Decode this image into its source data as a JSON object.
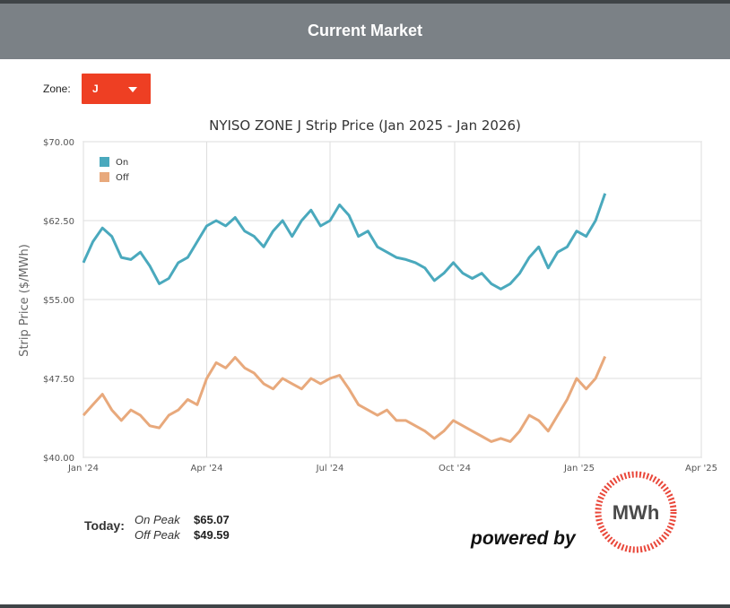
{
  "header": {
    "title": "Current Market"
  },
  "zone": {
    "label": "Zone:",
    "selected": "J"
  },
  "chart_data": {
    "type": "line",
    "title": "NYISO ZONE J Strip Price (Jan 2025 - Jan 2026)",
    "ylabel": "Strip Price ($/MWh)",
    "xlabel": "",
    "ylim": [
      40,
      70
    ],
    "xlim": [
      "2024-01-01",
      "2025-04-01"
    ],
    "x_ticks": [
      {
        "date": "2024-01-01",
        "label": "Jan '24"
      },
      {
        "date": "2024-04-01",
        "label": "Apr '24"
      },
      {
        "date": "2024-07-01",
        "label": "Jul '24"
      },
      {
        "date": "2024-10-01",
        "label": "Oct '24"
      },
      {
        "date": "2025-01-01",
        "label": "Jan '25"
      },
      {
        "date": "2025-04-01",
        "label": "Apr '25"
      }
    ],
    "y_ticks": [
      {
        "value": 40,
        "label": "$40.00"
      },
      {
        "value": 47.5,
        "label": "$47.50"
      },
      {
        "value": 55,
        "label": "$55.00"
      },
      {
        "value": 62.5,
        "label": "$62.50"
      },
      {
        "value": 70,
        "label": "$70.00"
      }
    ],
    "grid": true,
    "legend": "top-left",
    "series": [
      {
        "name": "On",
        "color": "#4aa9bd",
        "x": [
          "2024-01-01",
          "2024-01-08",
          "2024-01-15",
          "2024-01-22",
          "2024-01-29",
          "2024-02-05",
          "2024-02-12",
          "2024-02-19",
          "2024-02-26",
          "2024-03-04",
          "2024-03-11",
          "2024-03-18",
          "2024-03-25",
          "2024-04-01",
          "2024-04-08",
          "2024-04-15",
          "2024-04-22",
          "2024-04-29",
          "2024-05-06",
          "2024-05-13",
          "2024-05-20",
          "2024-05-27",
          "2024-06-03",
          "2024-06-10",
          "2024-06-17",
          "2024-06-24",
          "2024-07-01",
          "2024-07-08",
          "2024-07-15",
          "2024-07-22",
          "2024-07-29",
          "2024-08-05",
          "2024-08-12",
          "2024-08-19",
          "2024-08-26",
          "2024-09-02",
          "2024-09-09",
          "2024-09-16",
          "2024-09-23",
          "2024-09-30",
          "2024-10-07",
          "2024-10-14",
          "2024-10-21",
          "2024-10-28",
          "2024-11-04",
          "2024-11-11",
          "2024-11-18",
          "2024-11-25",
          "2024-12-02",
          "2024-12-09",
          "2024-12-16",
          "2024-12-23",
          "2024-12-30",
          "2025-01-06",
          "2025-01-13",
          "2025-01-20"
        ],
        "values": [
          58.5,
          60.5,
          61.8,
          61.0,
          59.0,
          58.8,
          59.5,
          58.2,
          56.5,
          57.0,
          58.5,
          59.0,
          60.5,
          62.0,
          62.5,
          62.0,
          62.8,
          61.5,
          61.0,
          60.0,
          61.5,
          62.5,
          61.0,
          62.5,
          63.5,
          62.0,
          62.5,
          64.0,
          63.0,
          61.0,
          61.5,
          60.0,
          59.5,
          59.0,
          58.8,
          58.5,
          58.0,
          56.8,
          57.5,
          58.5,
          57.5,
          57.0,
          57.5,
          56.5,
          56.0,
          56.5,
          57.5,
          59.0,
          60.0,
          58.0,
          59.5,
          60.0,
          61.5,
          61.0,
          62.5,
          65.07
        ]
      },
      {
        "name": "Off",
        "color": "#e8a97c",
        "x": [
          "2024-01-01",
          "2024-01-08",
          "2024-01-15",
          "2024-01-22",
          "2024-01-29",
          "2024-02-05",
          "2024-02-12",
          "2024-02-19",
          "2024-02-26",
          "2024-03-04",
          "2024-03-11",
          "2024-03-18",
          "2024-03-25",
          "2024-04-01",
          "2024-04-08",
          "2024-04-15",
          "2024-04-22",
          "2024-04-29",
          "2024-05-06",
          "2024-05-13",
          "2024-05-20",
          "2024-05-27",
          "2024-06-03",
          "2024-06-10",
          "2024-06-17",
          "2024-06-24",
          "2024-07-01",
          "2024-07-08",
          "2024-07-15",
          "2024-07-22",
          "2024-07-29",
          "2024-08-05",
          "2024-08-12",
          "2024-08-19",
          "2024-08-26",
          "2024-09-02",
          "2024-09-09",
          "2024-09-16",
          "2024-09-23",
          "2024-09-30",
          "2024-10-07",
          "2024-10-14",
          "2024-10-21",
          "2024-10-28",
          "2024-11-04",
          "2024-11-11",
          "2024-11-18",
          "2024-11-25",
          "2024-12-02",
          "2024-12-09",
          "2024-12-16",
          "2024-12-23",
          "2024-12-30",
          "2025-01-06",
          "2025-01-13",
          "2025-01-20"
        ],
        "values": [
          44.0,
          45.0,
          46.0,
          44.5,
          43.5,
          44.5,
          44.0,
          43.0,
          42.8,
          44.0,
          44.5,
          45.5,
          45.0,
          47.5,
          49.0,
          48.5,
          49.5,
          48.5,
          48.0,
          47.0,
          46.5,
          47.5,
          47.0,
          46.5,
          47.5,
          47.0,
          47.5,
          47.8,
          46.5,
          45.0,
          44.5,
          44.0,
          44.5,
          43.5,
          43.5,
          43.0,
          42.5,
          41.8,
          42.5,
          43.5,
          43.0,
          42.5,
          42.0,
          41.5,
          41.8,
          41.5,
          42.5,
          44.0,
          43.5,
          42.5,
          44.0,
          45.5,
          47.5,
          46.5,
          47.5,
          49.59
        ]
      }
    ]
  },
  "today": {
    "label": "Today:",
    "on_peak_label": "On Peak",
    "off_peak_label": "Off Peak",
    "on_peak_value": "$65.07",
    "off_peak_value": "$49.59"
  },
  "branding": {
    "powered_by": "powered by",
    "logo_text": "MWh"
  }
}
